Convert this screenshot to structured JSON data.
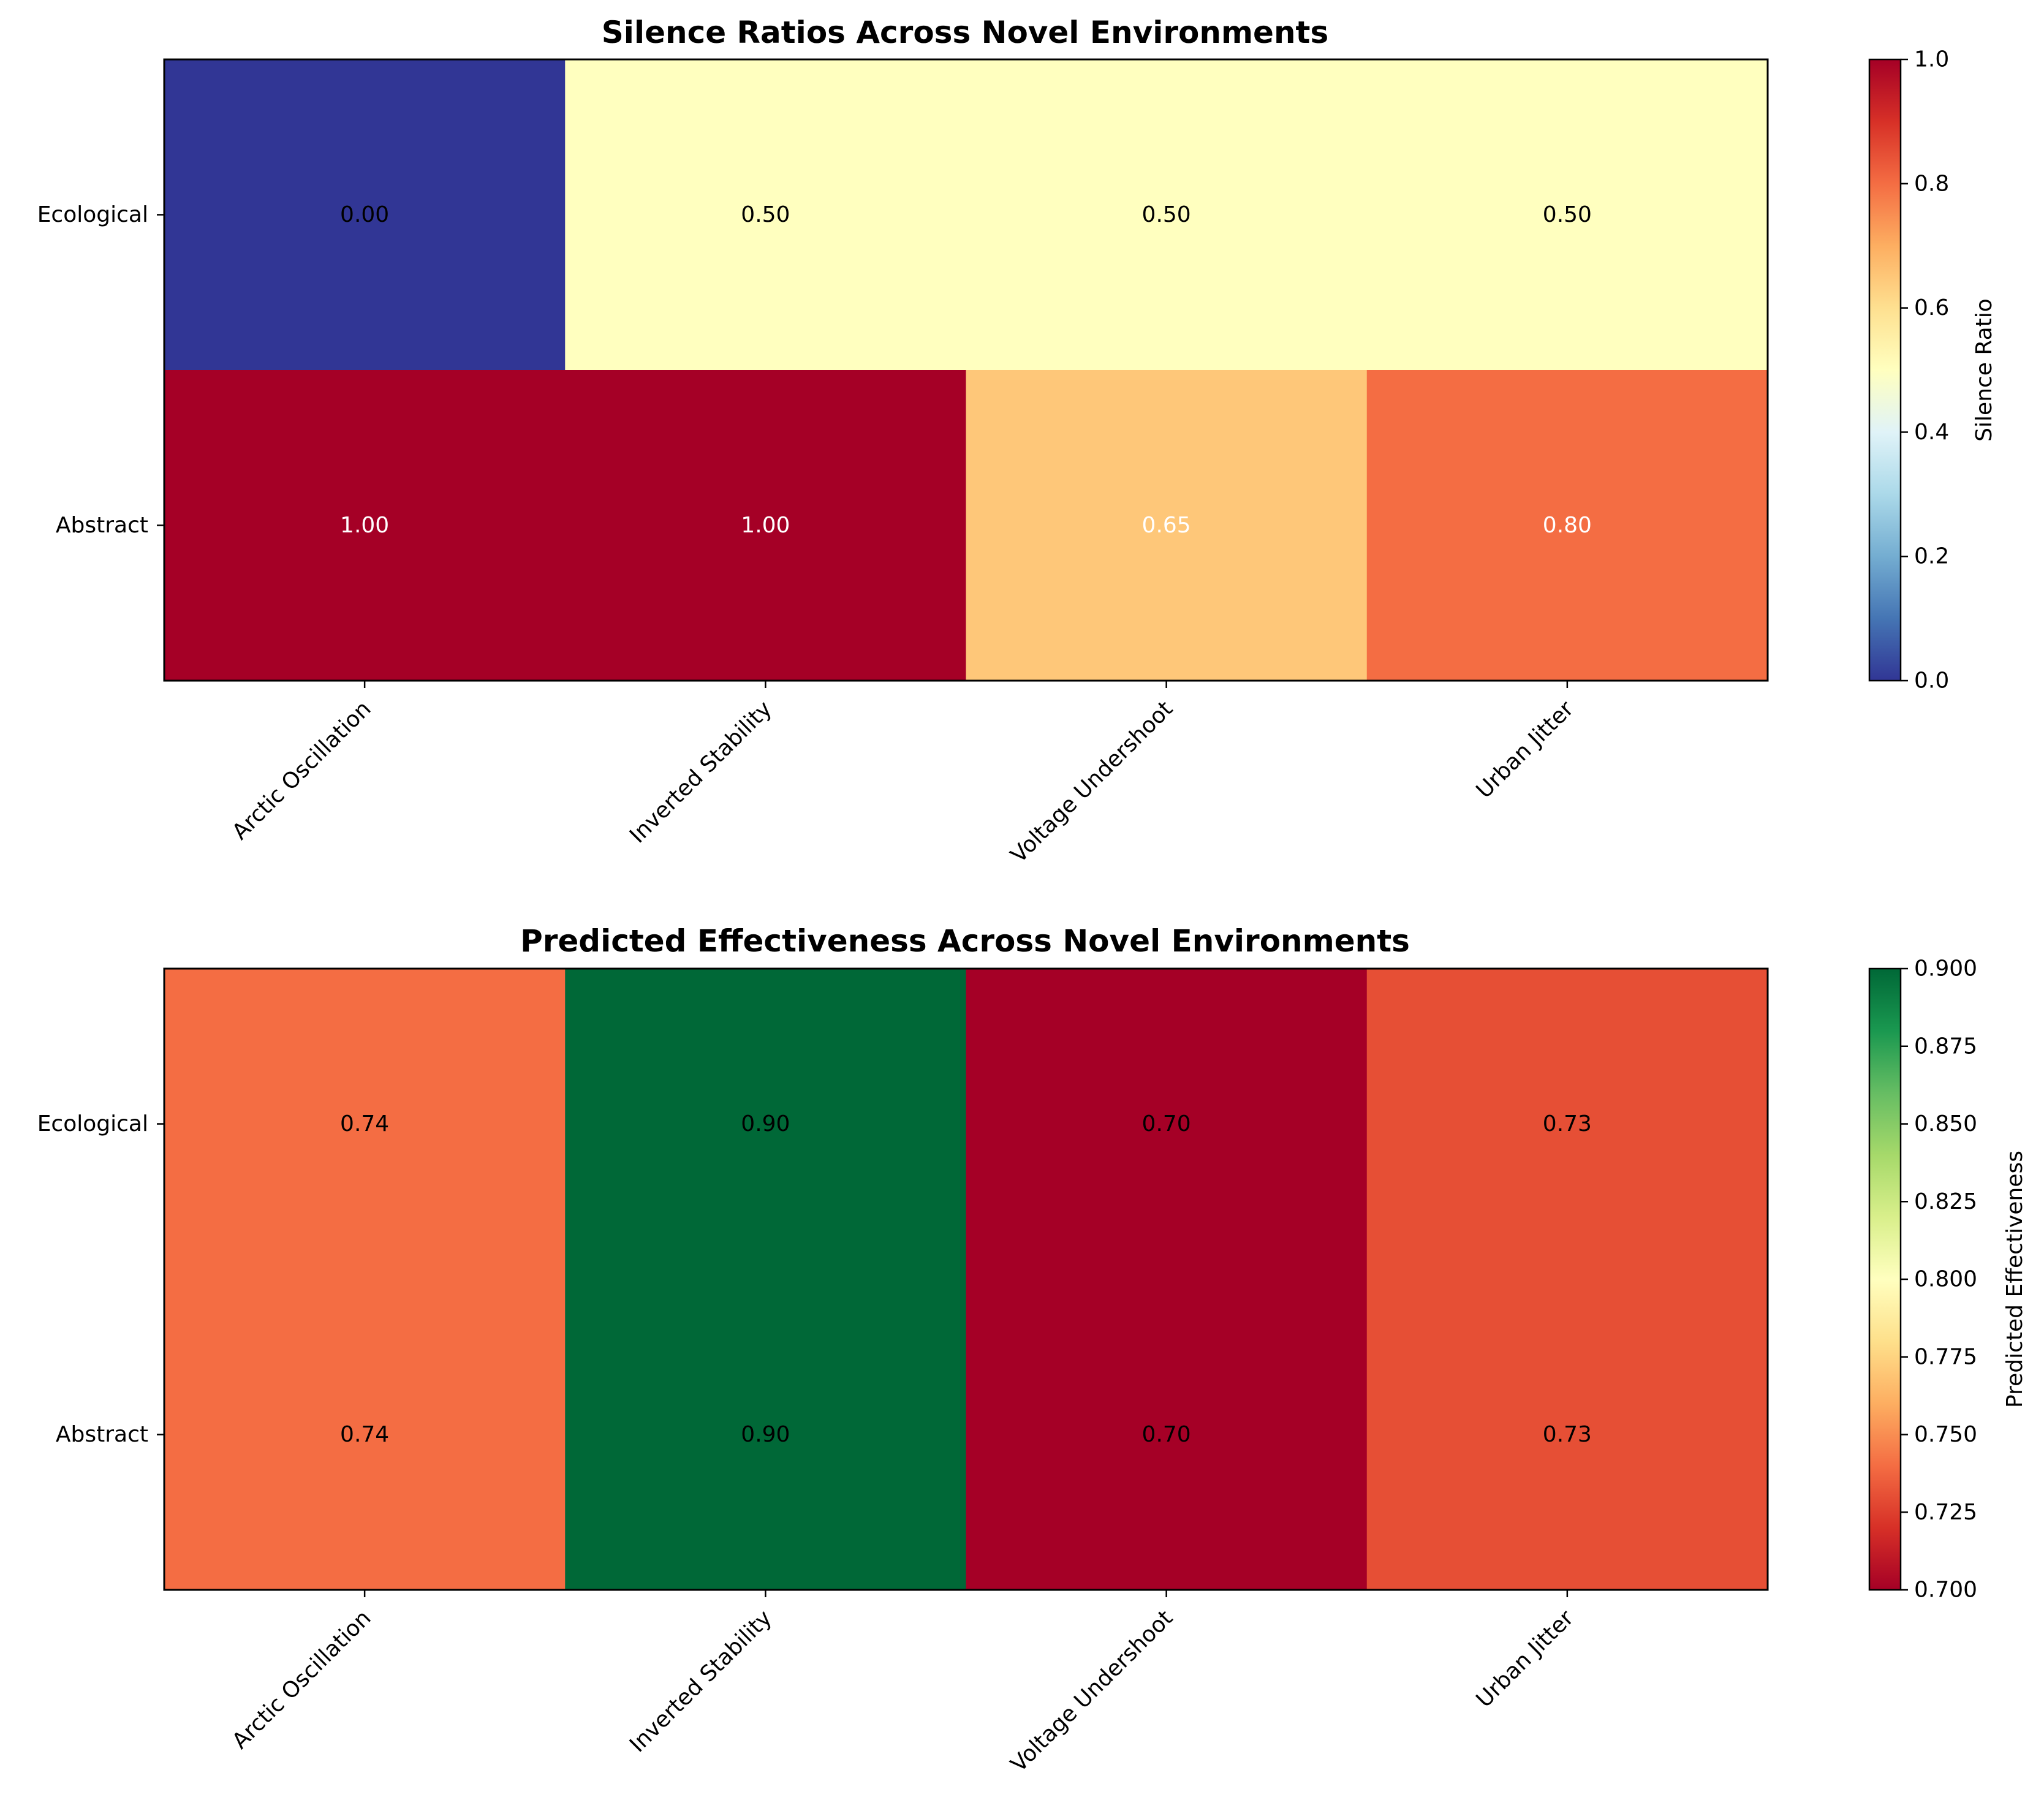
{
  "chart_data": [
    {
      "type": "heatmap",
      "title": "Silence Ratios Across Novel Environments",
      "columns": [
        "Arctic Oscillation",
        "Inverted Stability",
        "Voltage Undershoot",
        "Urban Jitter"
      ],
      "rows": [
        "Ecological",
        "Abstract"
      ],
      "values": [
        [
          0.0,
          0.5,
          0.5,
          0.5
        ],
        [
          1.0,
          1.0,
          0.65,
          0.8
        ]
      ],
      "value_labels": [
        [
          "0.00",
          "0.50",
          "0.50",
          "0.50"
        ],
        [
          "1.00",
          "1.00",
          "0.65",
          "0.80"
        ]
      ],
      "colormap": "RdYlBu_r",
      "vmin": 0.0,
      "vmax": 1.0,
      "colorbar_label": "Silence Ratio",
      "colorbar_ticks": [
        "0.0",
        "0.2",
        "0.4",
        "0.6",
        "0.8",
        "1.0"
      ]
    },
    {
      "type": "heatmap",
      "title": "Predicted Effectiveness Across Novel Environments",
      "columns": [
        "Arctic Oscillation",
        "Inverted Stability",
        "Voltage Undershoot",
        "Urban Jitter"
      ],
      "rows": [
        "Ecological",
        "Abstract"
      ],
      "values": [
        [
          0.74,
          0.9,
          0.7,
          0.73
        ],
        [
          0.74,
          0.9,
          0.7,
          0.73
        ]
      ],
      "value_labels": [
        [
          "0.74",
          "0.90",
          "0.70",
          "0.73"
        ],
        [
          "0.74",
          "0.90",
          "0.70",
          "0.73"
        ]
      ],
      "colormap": "RdYlGn",
      "vmin": 0.7,
      "vmax": 0.9,
      "colorbar_label": "Predicted Effectiveness",
      "colorbar_ticks": [
        "0.700",
        "0.725",
        "0.750",
        "0.775",
        "0.800",
        "0.825",
        "0.850",
        "0.875",
        "0.900"
      ]
    }
  ]
}
